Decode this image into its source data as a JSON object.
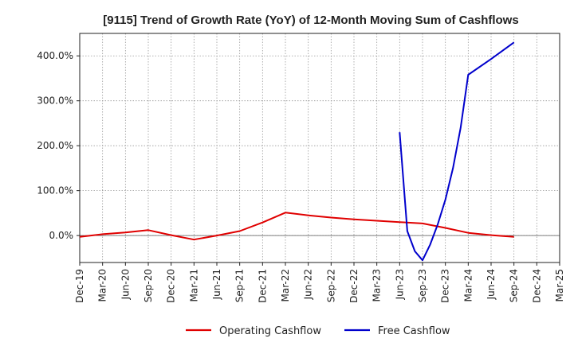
{
  "chart_data": {
    "type": "line",
    "title": "[9115]  Trend of Growth Rate (YoY) of 12-Month Moving Sum of Cashflows",
    "xlabel": "",
    "ylabel": "",
    "x_tick_labels": [
      "Dec-19",
      "Mar-20",
      "Jun-20",
      "Sep-20",
      "Dec-20",
      "Mar-21",
      "Jun-21",
      "Sep-21",
      "Dec-21",
      "Mar-22",
      "Jun-22",
      "Sep-22",
      "Dec-22",
      "Mar-23",
      "Jun-23",
      "Sep-23",
      "Dec-23",
      "Mar-24",
      "Jun-24",
      "Sep-24",
      "Dec-24",
      "Mar-25"
    ],
    "y_ticks": [
      0,
      100,
      200,
      300,
      400
    ],
    "y_tick_labels": [
      "0.0%",
      "100.0%",
      "200.0%",
      "300.0%",
      "400.0%"
    ],
    "ylim": [
      -60,
      450
    ],
    "grid": true,
    "legend_position": "bottom-center",
    "series": [
      {
        "name": "Operating Cashflow",
        "color": "#e00000",
        "points": [
          [
            "Dec-19",
            -3
          ],
          [
            "Mar-20",
            3
          ],
          [
            "Jun-20",
            7
          ],
          [
            "Sep-20",
            12
          ],
          [
            "Dec-20",
            1
          ],
          [
            "Mar-21",
            -9
          ],
          [
            "Jun-21",
            0
          ],
          [
            "Sep-21",
            10
          ],
          [
            "Dec-21",
            29
          ],
          [
            "Mar-22",
            51
          ],
          [
            "Jun-22",
            45
          ],
          [
            "Sep-22",
            40
          ],
          [
            "Dec-22",
            36
          ],
          [
            "Mar-23",
            33
          ],
          [
            "Jun-23",
            30
          ],
          [
            "Sep-23",
            27
          ],
          [
            "Dec-23",
            17
          ],
          [
            "Mar-24",
            6
          ],
          [
            "Jun-24",
            1
          ],
          [
            "Sep-24",
            -3
          ]
        ]
      },
      {
        "name": "Free Cashflow",
        "color": "#0000cc",
        "points": [
          [
            "Jun-23",
            230
          ],
          [
            "Jul-23",
            10
          ],
          [
            "Aug-23",
            -35
          ],
          [
            "Sep-23",
            -55
          ],
          [
            "Oct-23",
            -20
          ],
          [
            "Nov-23",
            25
          ],
          [
            "Dec-23",
            80
          ],
          [
            "Jan-24",
            150
          ],
          [
            "Feb-24",
            240
          ],
          [
            "Mar-24",
            358
          ],
          [
            "Jun-24",
            393
          ],
          [
            "Sep-24",
            430
          ]
        ]
      }
    ]
  }
}
